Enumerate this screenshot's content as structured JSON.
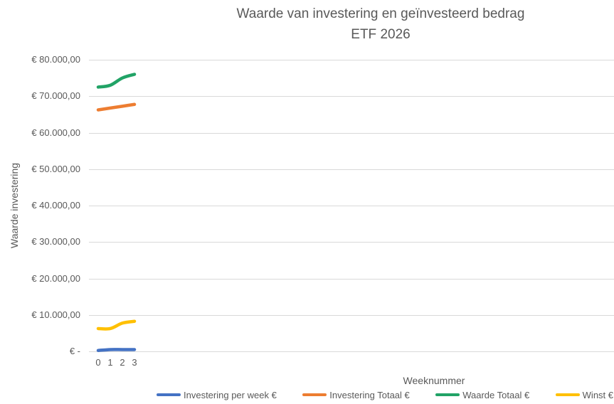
{
  "chart_data": {
    "type": "line",
    "title": "Waarde van investering en geïnvesteerd bedrag",
    "subtitle": "ETF 2026",
    "xlabel": "Weeknummer",
    "ylabel": "Waarde investering",
    "x": [
      0,
      1,
      2,
      3
    ],
    "x_tick_labels": [
      "0",
      "1",
      "2",
      "3"
    ],
    "ylim": [
      0,
      80000
    ],
    "y_tick_step": 10000,
    "y_tick_labels": [
      "€ -",
      "€ 10.000,00",
      "€ 20.000,00",
      "€ 30.000,00",
      "€ 40.000,00",
      "€ 50.000,00",
      "€ 60.000,00",
      "€ 70.000,00",
      "€ 80.000,00"
    ],
    "grid": true,
    "smooth_lines": true,
    "legend_position": "bottom",
    "series": [
      {
        "name": "Investering per week €",
        "color": "#4472C4",
        "values": [
          250,
          500,
          500,
          500
        ]
      },
      {
        "name": "Investering Totaal €",
        "color": "#ED7D31",
        "values": [
          66250,
          66750,
          67250,
          67750
        ]
      },
      {
        "name": "Waarde Totaal €",
        "color": "#21A366",
        "values": [
          72500,
          73000,
          75000,
          76000
        ]
      },
      {
        "name": "Winst €",
        "color": "#FFC000",
        "values": [
          6250,
          6250,
          7750,
          8250
        ]
      }
    ]
  },
  "style": {
    "background": "#FFFFFF",
    "text_color": "#595959",
    "gridline_color": "#D9D9D9",
    "line_width": 4.5
  }
}
